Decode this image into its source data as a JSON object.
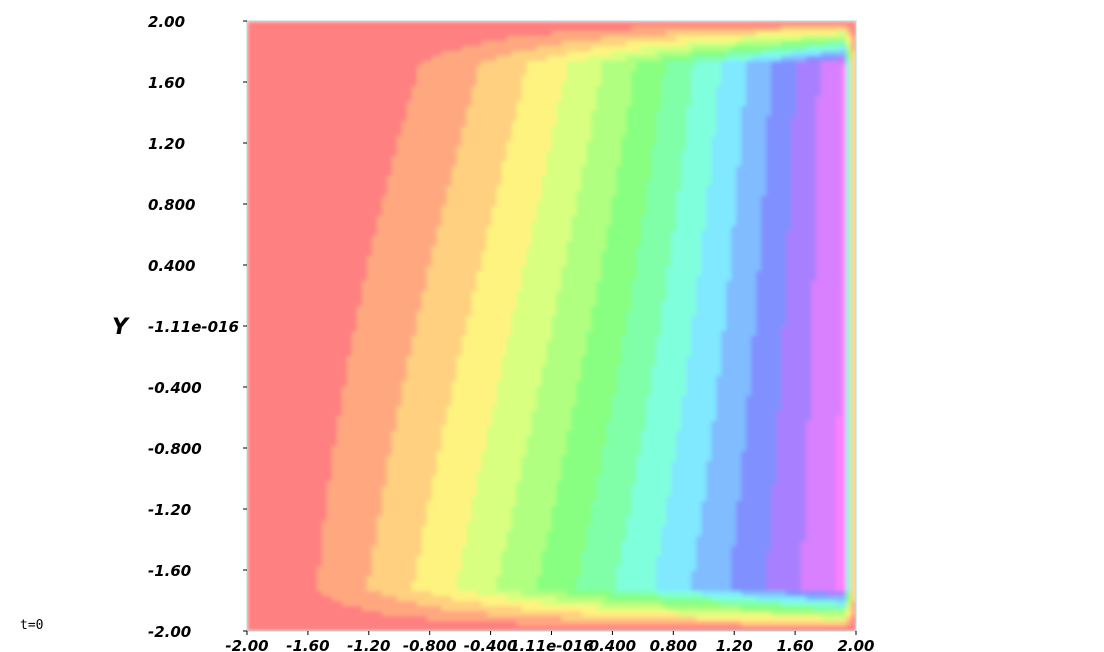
{
  "chart_data": {
    "type": "heatmap",
    "title": "",
    "xlabel": "",
    "ylabel": "Y",
    "xlim": [
      -2.0,
      2.0
    ],
    "ylim": [
      -2.0,
      2.0
    ],
    "x_ticks": [
      {
        "value": -2.0,
        "label": "-2.00"
      },
      {
        "value": -1.6,
        "label": "-1.60"
      },
      {
        "value": -1.2,
        "label": "-1.20"
      },
      {
        "value": -0.8,
        "label": "-0.800"
      },
      {
        "value": -0.4,
        "label": "-0.400"
      },
      {
        "value": 0.0,
        "label": "1.11e-016"
      },
      {
        "value": 0.4,
        "label": "0.400"
      },
      {
        "value": 0.8,
        "label": "0.800"
      },
      {
        "value": 1.2,
        "label": "1.20"
      },
      {
        "value": 1.6,
        "label": "1.60"
      },
      {
        "value": 2.0,
        "label": "2.00"
      }
    ],
    "y_ticks": [
      {
        "value": 2.0,
        "label": "2.00"
      },
      {
        "value": 1.6,
        "label": "1.60"
      },
      {
        "value": 1.2,
        "label": "1.20"
      },
      {
        "value": 0.8,
        "label": "0.800"
      },
      {
        "value": 0.4,
        "label": "0.400"
      },
      {
        "value": 0.0,
        "label": "-1.11e-016"
      },
      {
        "value": -0.4,
        "label": "-0.400"
      },
      {
        "value": -0.8,
        "label": "-0.800"
      },
      {
        "value": -1.2,
        "label": "-1.20"
      },
      {
        "value": -1.6,
        "label": "-1.60"
      },
      {
        "value": -2.0,
        "label": "-2.00"
      }
    ],
    "colormap": [
      "#ff8080",
      "#ffa880",
      "#ffd080",
      "#fff380",
      "#d8ff80",
      "#b0ff80",
      "#88ff80",
      "#80ffa8",
      "#80ffdc",
      "#80e8ff",
      "#80bcff",
      "#8090ff",
      "#a880ff",
      "#d880ff",
      "#ff80ff",
      "#ff80c0",
      "#ff8080"
    ],
    "contour_levels": 16,
    "legend": "none",
    "grid": false
  },
  "time_label": "t=0"
}
